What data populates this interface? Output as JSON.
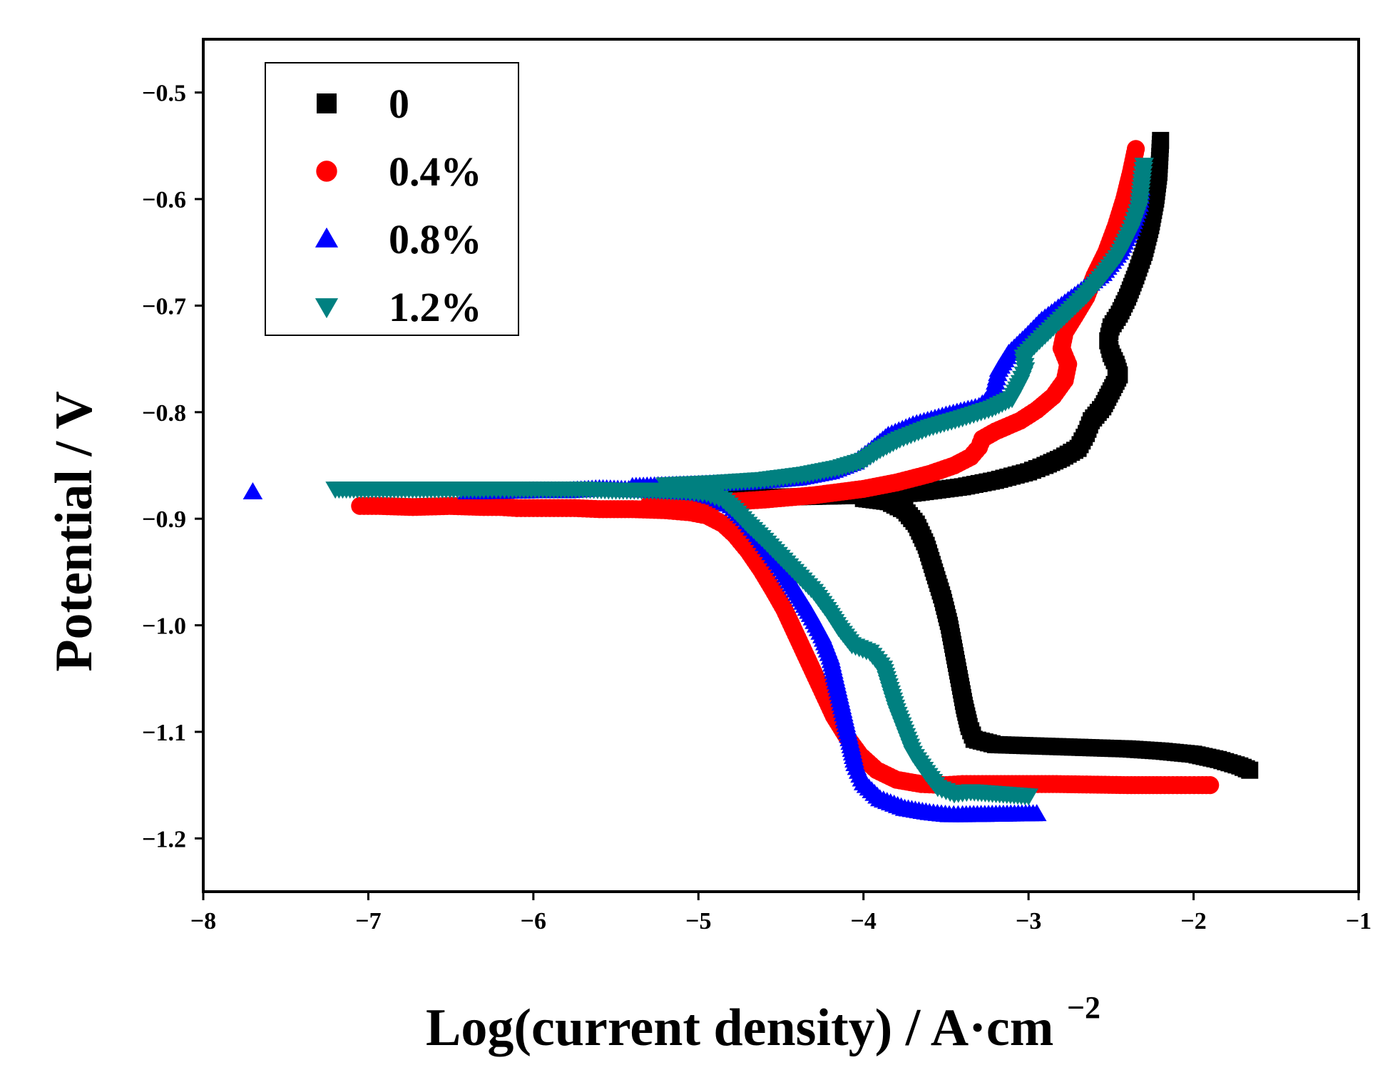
{
  "chart_data": {
    "type": "scatter",
    "title": "",
    "xlabel_main": "Log(current density) / A·cm",
    "xlabel_sup": "−2",
    "ylabel": "Potential / V",
    "xlim": [
      -8,
      -1
    ],
    "ylim": [
      -1.25,
      -0.45
    ],
    "xticks": [
      -8,
      -7,
      -6,
      -5,
      -4,
      -3,
      -2,
      -1
    ],
    "yticks": [
      -0.5,
      -0.6,
      -0.7,
      -0.8,
      -0.9,
      -1.0,
      -1.1,
      -1.2
    ],
    "xtick_labels": [
      "−8",
      "−7",
      "−6",
      "−5",
      "−4",
      "−3",
      "−2",
      "−1"
    ],
    "ytick_labels": [
      "−0.5",
      "−0.6",
      "−0.7",
      "−0.8",
      "−0.9",
      "−1.0",
      "−1.1",
      "−1.2"
    ],
    "legend_position": "top-left",
    "series": [
      {
        "name": "0",
        "color": "#000000",
        "marker": "square",
        "points": [
          [
            -4.9,
            -0.881
          ],
          [
            -4.6,
            -0.88
          ],
          [
            -4.3,
            -0.879
          ],
          [
            -4.0,
            -0.878
          ],
          [
            -3.8,
            -0.877
          ],
          [
            -3.7,
            -0.876
          ],
          [
            -3.6,
            -0.874
          ],
          [
            -3.5,
            -0.872
          ],
          [
            -3.4,
            -0.87
          ],
          [
            -3.3,
            -0.867
          ],
          [
            -3.2,
            -0.864
          ],
          [
            -3.1,
            -0.86
          ],
          [
            -3.0,
            -0.856
          ],
          [
            -2.9,
            -0.85
          ],
          [
            -2.8,
            -0.843
          ],
          [
            -2.7,
            -0.834
          ],
          [
            -2.65,
            -0.82
          ],
          [
            -2.62,
            -0.808
          ],
          [
            -2.55,
            -0.795
          ],
          [
            -2.5,
            -0.78
          ],
          [
            -2.45,
            -0.765
          ],
          [
            -2.47,
            -0.755
          ],
          [
            -2.5,
            -0.745
          ],
          [
            -2.52,
            -0.733
          ],
          [
            -2.5,
            -0.72
          ],
          [
            -2.45,
            -0.708
          ],
          [
            -2.4,
            -0.692
          ],
          [
            -2.35,
            -0.672
          ],
          [
            -2.3,
            -0.65
          ],
          [
            -2.26,
            -0.625
          ],
          [
            -2.23,
            -0.6
          ],
          [
            -2.21,
            -0.575
          ],
          [
            -2.2,
            -0.545
          ],
          [
            -4.0,
            -0.881
          ],
          [
            -3.85,
            -0.884
          ],
          [
            -3.75,
            -0.892
          ],
          [
            -3.68,
            -0.905
          ],
          [
            -3.62,
            -0.925
          ],
          [
            -3.57,
            -0.95
          ],
          [
            -3.52,
            -0.975
          ],
          [
            -3.48,
            -1.0
          ],
          [
            -3.45,
            -1.025
          ],
          [
            -3.42,
            -1.05
          ],
          [
            -3.39,
            -1.075
          ],
          [
            -3.36,
            -1.095
          ],
          [
            -3.33,
            -1.107
          ],
          [
            -3.2,
            -1.112
          ],
          [
            -3.0,
            -1.113
          ],
          [
            -2.8,
            -1.114
          ],
          [
            -2.6,
            -1.115
          ],
          [
            -2.4,
            -1.116
          ],
          [
            -2.2,
            -1.118
          ],
          [
            -2.0,
            -1.121
          ],
          [
            -1.85,
            -1.126
          ],
          [
            -1.72,
            -1.132
          ],
          [
            -1.66,
            -1.136
          ]
        ]
      },
      {
        "name": "0.4%",
        "color": "#ff0000",
        "marker": "circle",
        "points": [
          [
            -7.05,
            -0.888
          ],
          [
            -6.93,
            -0.888
          ],
          [
            -6.73,
            -0.889
          ],
          [
            -6.5,
            -0.888
          ],
          [
            -6.3,
            -0.889
          ],
          [
            -6.2,
            -0.889
          ],
          [
            -6.1,
            -0.89
          ],
          [
            -6.0,
            -0.89
          ],
          [
            -5.9,
            -0.89
          ],
          [
            -5.75,
            -0.89
          ],
          [
            -5.6,
            -0.891
          ],
          [
            -5.4,
            -0.891
          ],
          [
            -5.2,
            -0.892
          ],
          [
            -5.05,
            -0.894
          ],
          [
            -4.95,
            -0.897
          ],
          [
            -4.85,
            -0.905
          ],
          [
            -4.78,
            -0.915
          ],
          [
            -4.7,
            -0.93
          ],
          [
            -4.62,
            -0.948
          ],
          [
            -4.55,
            -0.966
          ],
          [
            -4.48,
            -0.985
          ],
          [
            -4.42,
            -1.005
          ],
          [
            -4.36,
            -1.025
          ],
          [
            -4.3,
            -1.045
          ],
          [
            -4.24,
            -1.065
          ],
          [
            -4.18,
            -1.085
          ],
          [
            -4.1,
            -1.105
          ],
          [
            -4.02,
            -1.122
          ],
          [
            -3.92,
            -1.136
          ],
          [
            -3.8,
            -1.145
          ],
          [
            -3.65,
            -1.149
          ],
          [
            -3.5,
            -1.15
          ],
          [
            -3.4,
            -1.149
          ],
          [
            -3.28,
            -1.149
          ],
          [
            -2.83,
            -1.149
          ],
          [
            -2.4,
            -1.15
          ],
          [
            -2.2,
            -1.15
          ],
          [
            -2.05,
            -1.15
          ],
          [
            -1.97,
            -1.15
          ],
          [
            -1.9,
            -1.15
          ],
          [
            -5.3,
            -0.887
          ],
          [
            -5.0,
            -0.886
          ],
          [
            -4.8,
            -0.884
          ],
          [
            -4.6,
            -0.882
          ],
          [
            -4.3,
            -0.878
          ],
          [
            -4.0,
            -0.872
          ],
          [
            -3.8,
            -0.866
          ],
          [
            -3.6,
            -0.858
          ],
          [
            -3.45,
            -0.85
          ],
          [
            -3.35,
            -0.842
          ],
          [
            -3.3,
            -0.833
          ],
          [
            -3.28,
            -0.825
          ],
          [
            -3.2,
            -0.818
          ],
          [
            -3.05,
            -0.808
          ],
          [
            -2.95,
            -0.798
          ],
          [
            -2.85,
            -0.785
          ],
          [
            -2.78,
            -0.77
          ],
          [
            -2.76,
            -0.755
          ],
          [
            -2.8,
            -0.74
          ],
          [
            -2.78,
            -0.725
          ],
          [
            -2.72,
            -0.71
          ],
          [
            -2.65,
            -0.692
          ],
          [
            -2.6,
            -0.672
          ],
          [
            -2.53,
            -0.65
          ],
          [
            -2.47,
            -0.625
          ],
          [
            -2.42,
            -0.6
          ],
          [
            -2.38,
            -0.575
          ],
          [
            -2.35,
            -0.553
          ]
        ]
      },
      {
        "name": "0.8%",
        "color": "#0000ff",
        "marker": "triangle-up",
        "points": [
          [
            -7.7,
            -0.875
          ],
          [
            -6.4,
            -0.875
          ],
          [
            -6.0,
            -0.874
          ],
          [
            -5.8,
            -0.874
          ],
          [
            -5.6,
            -0.872
          ],
          [
            -5.4,
            -0.873
          ],
          [
            -5.2,
            -0.874
          ],
          [
            -5.0,
            -0.876
          ],
          [
            -4.9,
            -0.88
          ],
          [
            -4.8,
            -0.888
          ],
          [
            -4.72,
            -0.9
          ],
          [
            -4.64,
            -0.915
          ],
          [
            -4.56,
            -0.932
          ],
          [
            -4.48,
            -0.95
          ],
          [
            -4.4,
            -0.97
          ],
          [
            -4.32,
            -0.99
          ],
          [
            -4.25,
            -1.01
          ],
          [
            -4.2,
            -1.03
          ],
          [
            -4.17,
            -1.05
          ],
          [
            -4.14,
            -1.07
          ],
          [
            -4.11,
            -1.09
          ],
          [
            -4.08,
            -1.11
          ],
          [
            -4.05,
            -1.13
          ],
          [
            -4.0,
            -1.148
          ],
          [
            -3.9,
            -1.163
          ],
          [
            -3.75,
            -1.172
          ],
          [
            -3.6,
            -1.176
          ],
          [
            -3.48,
            -1.178
          ],
          [
            -3.4,
            -1.178
          ],
          [
            -2.95,
            -1.177
          ],
          [
            -5.4,
            -0.87
          ],
          [
            -5.0,
            -0.868
          ],
          [
            -4.7,
            -0.866
          ],
          [
            -4.4,
            -0.862
          ],
          [
            -4.2,
            -0.856
          ],
          [
            -4.05,
            -0.847
          ],
          [
            -3.95,
            -0.835
          ],
          [
            -3.85,
            -0.822
          ],
          [
            -3.7,
            -0.812
          ],
          [
            -3.5,
            -0.803
          ],
          [
            -3.3,
            -0.795
          ],
          [
            -3.22,
            -0.785
          ],
          [
            -3.2,
            -0.772
          ],
          [
            -3.18,
            -0.76
          ],
          [
            -3.12,
            -0.745
          ],
          [
            -3.02,
            -0.73
          ],
          [
            -2.92,
            -0.714
          ],
          [
            -2.8,
            -0.7
          ],
          [
            -2.68,
            -0.686
          ],
          [
            -2.55,
            -0.67
          ],
          [
            -2.45,
            -0.65
          ],
          [
            -2.38,
            -0.628
          ],
          [
            -2.33,
            -0.605
          ],
          [
            -2.32,
            -0.59
          ]
        ]
      },
      {
        "name": "1.2%",
        "color": "#008080",
        "marker": "triangle-down",
        "points": [
          [
            -7.2,
            -0.872
          ],
          [
            -6.62,
            -0.872
          ],
          [
            -6.3,
            -0.872
          ],
          [
            -6.15,
            -0.872
          ],
          [
            -5.92,
            -0.872
          ],
          [
            -5.7,
            -0.872
          ],
          [
            -5.5,
            -0.873
          ],
          [
            -5.3,
            -0.873
          ],
          [
            -5.1,
            -0.874
          ],
          [
            -4.95,
            -0.876
          ],
          [
            -4.85,
            -0.882
          ],
          [
            -4.78,
            -0.892
          ],
          [
            -4.7,
            -0.905
          ],
          [
            -4.6,
            -0.92
          ],
          [
            -4.5,
            -0.936
          ],
          [
            -4.4,
            -0.952
          ],
          [
            -4.3,
            -0.968
          ],
          [
            -4.22,
            -0.985
          ],
          [
            -4.15,
            -1.002
          ],
          [
            -4.07,
            -1.018
          ],
          [
            -3.96,
            -1.025
          ],
          [
            -3.88,
            -1.04
          ],
          [
            -3.84,
            -1.06
          ],
          [
            -3.8,
            -1.08
          ],
          [
            -3.75,
            -1.1
          ],
          [
            -3.7,
            -1.12
          ],
          [
            -3.62,
            -1.138
          ],
          [
            -3.55,
            -1.152
          ],
          [
            -3.45,
            -1.158
          ],
          [
            -3.35,
            -1.156
          ],
          [
            -3.0,
            -1.16
          ],
          [
            -5.2,
            -0.868
          ],
          [
            -4.9,
            -0.866
          ],
          [
            -4.6,
            -0.863
          ],
          [
            -4.35,
            -0.858
          ],
          [
            -4.15,
            -0.852
          ],
          [
            -4.0,
            -0.845
          ],
          [
            -3.9,
            -0.835
          ],
          [
            -3.78,
            -0.825
          ],
          [
            -3.6,
            -0.814
          ],
          [
            -3.4,
            -0.805
          ],
          [
            -3.22,
            -0.796
          ],
          [
            -3.1,
            -0.787
          ],
          [
            -3.05,
            -0.772
          ],
          [
            -3.02,
            -0.76
          ],
          [
            -3.03,
            -0.748
          ],
          [
            -2.95,
            -0.735
          ],
          [
            -2.85,
            -0.72
          ],
          [
            -2.75,
            -0.705
          ],
          [
            -2.65,
            -0.69
          ],
          [
            -2.55,
            -0.672
          ],
          [
            -2.45,
            -0.652
          ],
          [
            -2.38,
            -0.63
          ],
          [
            -2.33,
            -0.608
          ],
          [
            -2.31,
            -0.58
          ],
          [
            -2.3,
            -0.568
          ]
        ]
      }
    ]
  }
}
